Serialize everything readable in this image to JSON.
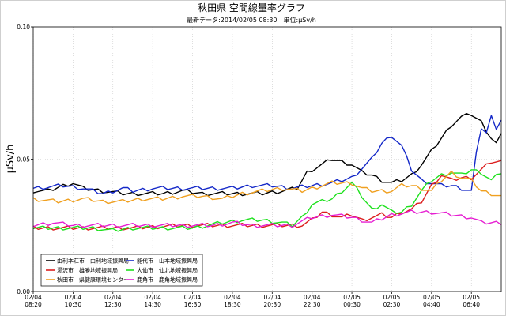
{
  "chart_data": {
    "type": "line",
    "title": "秋田県 空間線量率グラフ",
    "subtitle": "最新データ:2014/02/05 08:30　単位:μSv/h",
    "ylabel": "μSv/h",
    "xlabel": "",
    "ylim": [
      0.0,
      0.1
    ],
    "yticks": [
      {
        "value": 0.0,
        "label": "0.00"
      },
      {
        "value": 0.05,
        "label": "0.05"
      },
      {
        "value": 0.1,
        "label": "0.10"
      }
    ],
    "xticks": [
      {
        "i": 0,
        "date": "02/04",
        "time": "08:20"
      },
      {
        "i": 8,
        "date": "02/04",
        "time": "10:30"
      },
      {
        "i": 16,
        "date": "02/04",
        "time": "12:30"
      },
      {
        "i": 24,
        "date": "02/04",
        "time": "14:30"
      },
      {
        "i": 32,
        "date": "02/04",
        "time": "16:30"
      },
      {
        "i": 40,
        "date": "02/04",
        "time": "18:30"
      },
      {
        "i": 48,
        "date": "02/04",
        "time": "20:30"
      },
      {
        "i": 56,
        "date": "02/04",
        "time": "22:30"
      },
      {
        "i": 64,
        "date": "02/05",
        "time": "00:30"
      },
      {
        "i": 72,
        "date": "02/05",
        "time": "02:30"
      },
      {
        "i": 80,
        "date": "02/05",
        "time": "04:40"
      },
      {
        "i": 88,
        "date": "02/05",
        "time": "06:40"
      }
    ],
    "grid": true,
    "legend_position": "bottom-left",
    "series": [
      {
        "name": "由利本荘市　由利地域振興局",
        "color": "#000000",
        "anchors": [
          [
            0,
            0.038
          ],
          [
            3,
            0.038
          ],
          [
            6,
            0.04
          ],
          [
            8,
            0.041
          ],
          [
            10,
            0.039
          ],
          [
            14,
            0.038
          ],
          [
            18,
            0.037
          ],
          [
            22,
            0.037
          ],
          [
            26,
            0.037
          ],
          [
            30,
            0.038
          ],
          [
            34,
            0.037
          ],
          [
            38,
            0.037
          ],
          [
            42,
            0.037
          ],
          [
            46,
            0.037
          ],
          [
            50,
            0.038
          ],
          [
            53,
            0.039
          ],
          [
            55,
            0.045
          ],
          [
            58,
            0.048
          ],
          [
            60,
            0.05
          ],
          [
            62,
            0.049
          ],
          [
            64,
            0.048
          ],
          [
            66,
            0.045
          ],
          [
            68,
            0.044
          ],
          [
            70,
            0.042
          ],
          [
            72,
            0.041
          ],
          [
            74,
            0.042
          ],
          [
            76,
            0.044
          ],
          [
            78,
            0.048
          ],
          [
            80,
            0.053
          ],
          [
            82,
            0.058
          ],
          [
            84,
            0.063
          ],
          [
            86,
            0.066
          ],
          [
            88,
            0.067
          ],
          [
            90,
            0.064
          ],
          [
            92,
            0.058
          ],
          [
            93,
            0.056
          ],
          [
            94,
            0.059
          ]
        ]
      },
      {
        "name": "能代市　山本地域振興局",
        "color": "#1428c8",
        "anchors": [
          [
            0,
            0.039
          ],
          [
            6,
            0.04
          ],
          [
            10,
            0.039
          ],
          [
            14,
            0.037
          ],
          [
            18,
            0.039
          ],
          [
            20,
            0.038
          ],
          [
            24,
            0.039
          ],
          [
            28,
            0.039
          ],
          [
            32,
            0.039
          ],
          [
            36,
            0.039
          ],
          [
            40,
            0.039
          ],
          [
            44,
            0.04
          ],
          [
            48,
            0.04
          ],
          [
            52,
            0.039
          ],
          [
            56,
            0.04
          ],
          [
            60,
            0.041
          ],
          [
            64,
            0.043
          ],
          [
            68,
            0.05
          ],
          [
            70,
            0.056
          ],
          [
            72,
            0.059
          ],
          [
            74,
            0.055
          ],
          [
            76,
            0.046
          ],
          [
            78,
            0.042
          ],
          [
            80,
            0.041
          ],
          [
            82,
            0.04
          ],
          [
            84,
            0.04
          ],
          [
            86,
            0.039
          ],
          [
            88,
            0.038
          ],
          [
            89,
            0.052
          ],
          [
            90,
            0.062
          ],
          [
            91,
            0.06
          ],
          [
            92,
            0.066
          ],
          [
            93,
            0.062
          ],
          [
            94,
            0.065
          ]
        ]
      },
      {
        "name": "湯沢市　雄勝地域振興局",
        "color": "#dc1e1e",
        "anchors": [
          [
            0,
            0.024
          ],
          [
            10,
            0.024
          ],
          [
            20,
            0.024
          ],
          [
            30,
            0.025
          ],
          [
            40,
            0.025
          ],
          [
            50,
            0.025
          ],
          [
            54,
            0.025
          ],
          [
            56,
            0.027
          ],
          [
            58,
            0.03
          ],
          [
            60,
            0.029
          ],
          [
            62,
            0.028
          ],
          [
            64,
            0.029
          ],
          [
            66,
            0.027
          ],
          [
            68,
            0.028
          ],
          [
            70,
            0.029
          ],
          [
            72,
            0.028
          ],
          [
            74,
            0.03
          ],
          [
            76,
            0.031
          ],
          [
            78,
            0.034
          ],
          [
            80,
            0.04
          ],
          [
            82,
            0.044
          ],
          [
            84,
            0.042
          ],
          [
            86,
            0.043
          ],
          [
            88,
            0.043
          ],
          [
            90,
            0.046
          ],
          [
            92,
            0.049
          ],
          [
            94,
            0.049
          ]
        ]
      },
      {
        "name": "大仙市　仙北地域振興局",
        "color": "#1ee11e",
        "anchors": [
          [
            0,
            0.024
          ],
          [
            6,
            0.024
          ],
          [
            12,
            0.024
          ],
          [
            16,
            0.023
          ],
          [
            20,
            0.024
          ],
          [
            26,
            0.024
          ],
          [
            32,
            0.024
          ],
          [
            38,
            0.026
          ],
          [
            42,
            0.027
          ],
          [
            46,
            0.027
          ],
          [
            50,
            0.026
          ],
          [
            52,
            0.025
          ],
          [
            54,
            0.028
          ],
          [
            56,
            0.033
          ],
          [
            58,
            0.034
          ],
          [
            60,
            0.035
          ],
          [
            62,
            0.038
          ],
          [
            64,
            0.041
          ],
          [
            66,
            0.036
          ],
          [
            68,
            0.031
          ],
          [
            70,
            0.033
          ],
          [
            72,
            0.03
          ],
          [
            74,
            0.03
          ],
          [
            76,
            0.033
          ],
          [
            78,
            0.038
          ],
          [
            80,
            0.042
          ],
          [
            82,
            0.044
          ],
          [
            84,
            0.045
          ],
          [
            86,
            0.044
          ],
          [
            88,
            0.046
          ],
          [
            90,
            0.045
          ],
          [
            92,
            0.042
          ],
          [
            94,
            0.045
          ]
        ]
      },
      {
        "name": "秋田市　県健康環境センター",
        "color": "#f0a020",
        "anchors": [
          [
            0,
            0.035
          ],
          [
            5,
            0.034
          ],
          [
            10,
            0.035
          ],
          [
            14,
            0.034
          ],
          [
            18,
            0.034
          ],
          [
            22,
            0.035
          ],
          [
            26,
            0.035
          ],
          [
            30,
            0.036
          ],
          [
            34,
            0.036
          ],
          [
            38,
            0.035
          ],
          [
            42,
            0.037
          ],
          [
            46,
            0.038
          ],
          [
            50,
            0.039
          ],
          [
            54,
            0.038
          ],
          [
            58,
            0.04
          ],
          [
            60,
            0.041
          ],
          [
            62,
            0.041
          ],
          [
            64,
            0.041
          ],
          [
            66,
            0.039
          ],
          [
            68,
            0.038
          ],
          [
            70,
            0.038
          ],
          [
            72,
            0.038
          ],
          [
            74,
            0.04
          ],
          [
            76,
            0.04
          ],
          [
            78,
            0.039
          ],
          [
            80,
            0.038
          ],
          [
            82,
            0.042
          ],
          [
            84,
            0.045
          ],
          [
            86,
            0.043
          ],
          [
            88,
            0.042
          ],
          [
            90,
            0.038
          ],
          [
            92,
            0.037
          ],
          [
            94,
            0.036
          ]
        ]
      },
      {
        "name": "鹿角市　鹿角地域振興局",
        "color": "#e61ed2",
        "anchors": [
          [
            0,
            0.025
          ],
          [
            4,
            0.026
          ],
          [
            8,
            0.025
          ],
          [
            12,
            0.025
          ],
          [
            16,
            0.025
          ],
          [
            20,
            0.025
          ],
          [
            24,
            0.025
          ],
          [
            28,
            0.025
          ],
          [
            32,
            0.025
          ],
          [
            36,
            0.025
          ],
          [
            40,
            0.026
          ],
          [
            44,
            0.025
          ],
          [
            48,
            0.025
          ],
          [
            52,
            0.025
          ],
          [
            56,
            0.028
          ],
          [
            60,
            0.029
          ],
          [
            64,
            0.028
          ],
          [
            68,
            0.026
          ],
          [
            72,
            0.029
          ],
          [
            76,
            0.03
          ],
          [
            80,
            0.03
          ],
          [
            84,
            0.029
          ],
          [
            88,
            0.028
          ],
          [
            90,
            0.026
          ],
          [
            92,
            0.026
          ],
          [
            94,
            0.026
          ]
        ]
      }
    ]
  },
  "legend": {
    "rows": [
      [
        0,
        1
      ],
      [
        2,
        3
      ],
      [
        4,
        5
      ]
    ]
  }
}
